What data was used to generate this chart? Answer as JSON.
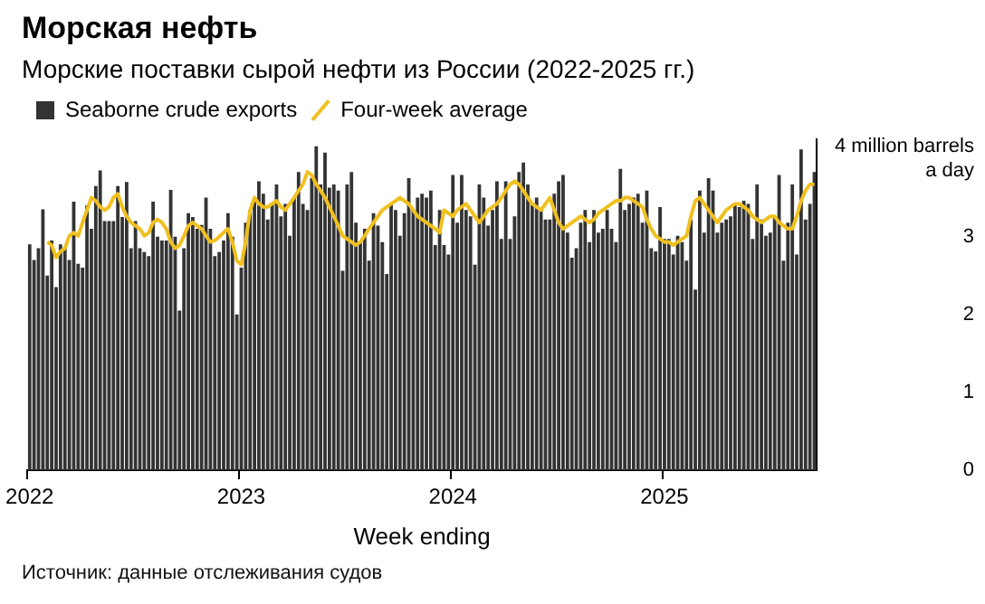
{
  "chart_data": {
    "type": "bar",
    "title": "Морская нефть",
    "subtitle": "Морские поставки сырой нефти из России (2022-2025 гг.)",
    "xlabel": "Week ending",
    "categories": [
      "2022",
      null,
      null,
      null,
      null,
      null,
      null,
      null,
      null,
      null,
      null,
      null,
      null,
      null,
      null,
      null,
      null,
      null,
      null,
      null,
      null,
      null,
      null,
      null,
      null,
      null,
      null,
      null,
      null,
      null,
      null,
      null,
      null,
      null,
      null,
      null,
      null,
      null,
      null,
      null,
      null,
      null,
      null,
      null,
      null,
      null,
      null,
      null,
      "2023",
      null,
      null,
      null,
      null,
      null,
      null,
      null,
      null,
      null,
      null,
      null,
      null,
      null,
      null,
      null,
      null,
      null,
      null,
      null,
      null,
      null,
      null,
      null,
      null,
      null,
      null,
      null,
      null,
      null,
      null,
      null,
      null,
      null,
      null,
      null,
      null,
      null,
      null,
      null,
      null,
      null,
      null,
      null,
      null,
      null,
      null,
      null,
      "2024",
      null,
      null,
      null,
      null,
      null,
      null,
      null,
      null,
      null,
      null,
      null,
      null,
      null,
      null,
      null,
      null,
      null,
      null,
      null,
      null,
      null,
      null,
      null,
      null,
      null,
      null,
      null,
      null,
      null,
      null,
      null,
      null,
      null,
      null,
      null,
      null,
      null,
      null,
      null,
      null,
      null,
      null,
      null,
      null,
      null,
      null,
      null,
      "2025",
      null,
      null,
      null,
      null,
      null,
      null,
      null,
      null,
      null,
      null,
      null,
      null,
      null,
      null,
      null,
      null,
      null,
      null,
      null,
      null,
      null,
      null,
      null,
      null,
      null,
      null,
      null,
      null,
      null,
      null,
      null,
      null,
      null,
      null
    ],
    "series": [
      {
        "name": "Seaborne crude exports",
        "color": "#333333",
        "values": [
          2.9,
          2.7,
          2.85,
          3.35,
          2.5,
          2.95,
          2.35,
          2.9,
          2.85,
          2.7,
          3.45,
          2.65,
          2.6,
          3.4,
          3.1,
          3.65,
          3.85,
          3.2,
          3.2,
          3.2,
          3.65,
          3.25,
          3.7,
          2.85,
          3.2,
          2.85,
          2.8,
          2.75,
          3.45,
          3.0,
          2.95,
          2.95,
          3.6,
          3.0,
          2.05,
          2.85,
          3.3,
          3.25,
          3.1,
          3.15,
          3.5,
          3.1,
          2.75,
          2.8,
          2.95,
          3.3,
          3.0,
          2.0,
          2.6,
          3.18,
          3.34,
          3.46,
          3.71,
          3.55,
          3.22,
          3.42,
          3.67,
          3.26,
          3.42,
          3.01,
          3.5,
          3.83,
          3.42,
          3.34,
          3.75,
          4.16,
          3.67,
          4.08,
          3.63,
          3.67,
          3.59,
          2.56,
          3.67,
          3.83,
          3.18,
          2.93,
          3.1,
          2.69,
          3.3,
          3.14,
          2.93,
          2.52,
          3.42,
          3.34,
          3.01,
          3.3,
          3.75,
          3.34,
          3.5,
          3.55,
          3.5,
          3.59,
          2.89,
          3.34,
          2.89,
          2.77,
          3.79,
          3.18,
          3.79,
          3.34,
          3.26,
          2.64,
          3.67,
          3.5,
          3.14,
          3.34,
          3.71,
          2.97,
          3.71,
          2.97,
          3.26,
          3.83,
          3.95,
          3.67,
          3.42,
          3.5,
          3.34,
          3.22,
          3.22,
          3.55,
          3.71,
          3.79,
          3.05,
          2.73,
          2.85,
          3.18,
          3.34,
          2.93,
          3.34,
          3.05,
          3.1,
          3.34,
          3.1,
          2.93,
          3.87,
          3.34,
          3.42,
          3.5,
          3.55,
          3.18,
          3.59,
          2.85,
          2.81,
          3.38,
          2.97,
          2.97,
          2.77,
          3.01,
          2.93,
          2.69,
          3.22,
          2.32,
          3.59,
          3.05,
          3.75,
          3.59,
          3.05,
          3.18,
          3.22,
          3.26,
          3.42,
          3.38,
          3.46,
          3.42,
          2.97,
          3.67,
          3.22,
          3.01,
          3.05,
          3.26,
          3.79,
          2.69,
          3.18,
          3.67,
          2.77,
          4.12,
          3.22,
          3.42,
          3.83
        ]
      },
      {
        "name": "Four-week average",
        "type": "line",
        "color": "#f0c020",
        "values": [
          null,
          null,
          null,
          null,
          2.93,
          2.89,
          2.73,
          2.81,
          2.85,
          3.01,
          3.05,
          3.01,
          3.18,
          3.34,
          3.5,
          3.46,
          3.38,
          3.34,
          3.38,
          3.5,
          3.55,
          3.38,
          3.26,
          3.18,
          3.14,
          3.1,
          3.01,
          3.05,
          3.18,
          3.22,
          3.18,
          3.1,
          2.93,
          2.85,
          2.89,
          3.01,
          3.14,
          3.18,
          3.14,
          3.1,
          3.01,
          2.93,
          2.95,
          3.0,
          3.05,
          3.1,
          2.93,
          2.69,
          2.64,
          2.93,
          3.34,
          3.5,
          3.42,
          3.38,
          3.38,
          3.42,
          3.46,
          3.38,
          3.34,
          3.42,
          3.5,
          3.59,
          3.67,
          3.83,
          3.79,
          3.67,
          3.59,
          3.5,
          3.38,
          3.26,
          3.14,
          3.01,
          2.97,
          2.93,
          2.89,
          2.93,
          3.01,
          3.1,
          3.18,
          3.26,
          3.34,
          3.38,
          3.42,
          3.46,
          3.5,
          3.46,
          3.42,
          3.34,
          3.26,
          3.22,
          3.18,
          3.14,
          3.1,
          3.05,
          3.34,
          3.3,
          3.26,
          3.34,
          3.38,
          3.42,
          3.34,
          3.26,
          3.18,
          3.26,
          3.34,
          3.38,
          3.42,
          3.5,
          3.59,
          3.67,
          3.71,
          3.67,
          3.59,
          3.5,
          3.42,
          3.38,
          3.34,
          3.42,
          3.5,
          3.34,
          3.18,
          3.1,
          3.14,
          3.18,
          3.22,
          3.26,
          3.22,
          3.18,
          3.22,
          3.3,
          3.34,
          3.38,
          3.42,
          3.46,
          3.46,
          3.5,
          3.5,
          3.46,
          3.42,
          3.38,
          3.22,
          3.1,
          3.01,
          2.97,
          2.93,
          2.93,
          2.89,
          2.93,
          2.97,
          3.01,
          3.26,
          3.46,
          3.5,
          3.42,
          3.34,
          3.26,
          3.18,
          3.26,
          3.34,
          3.38,
          3.42,
          3.42,
          3.38,
          3.34,
          3.26,
          3.22,
          3.18,
          3.22,
          3.26,
          3.26,
          3.18,
          3.14,
          3.1,
          3.1,
          3.26,
          3.46,
          3.59,
          3.67,
          3.67
        ]
      }
    ],
    "ylim": [
      0,
      4.25
    ],
    "yticks": [
      0,
      1,
      2,
      3,
      {
        "value": 4,
        "label": "4 million barrels a day"
      }
    ],
    "grid": false,
    "legend": "top left",
    "annotations": [
      "Источник: данные отслеживания судов"
    ]
  }
}
